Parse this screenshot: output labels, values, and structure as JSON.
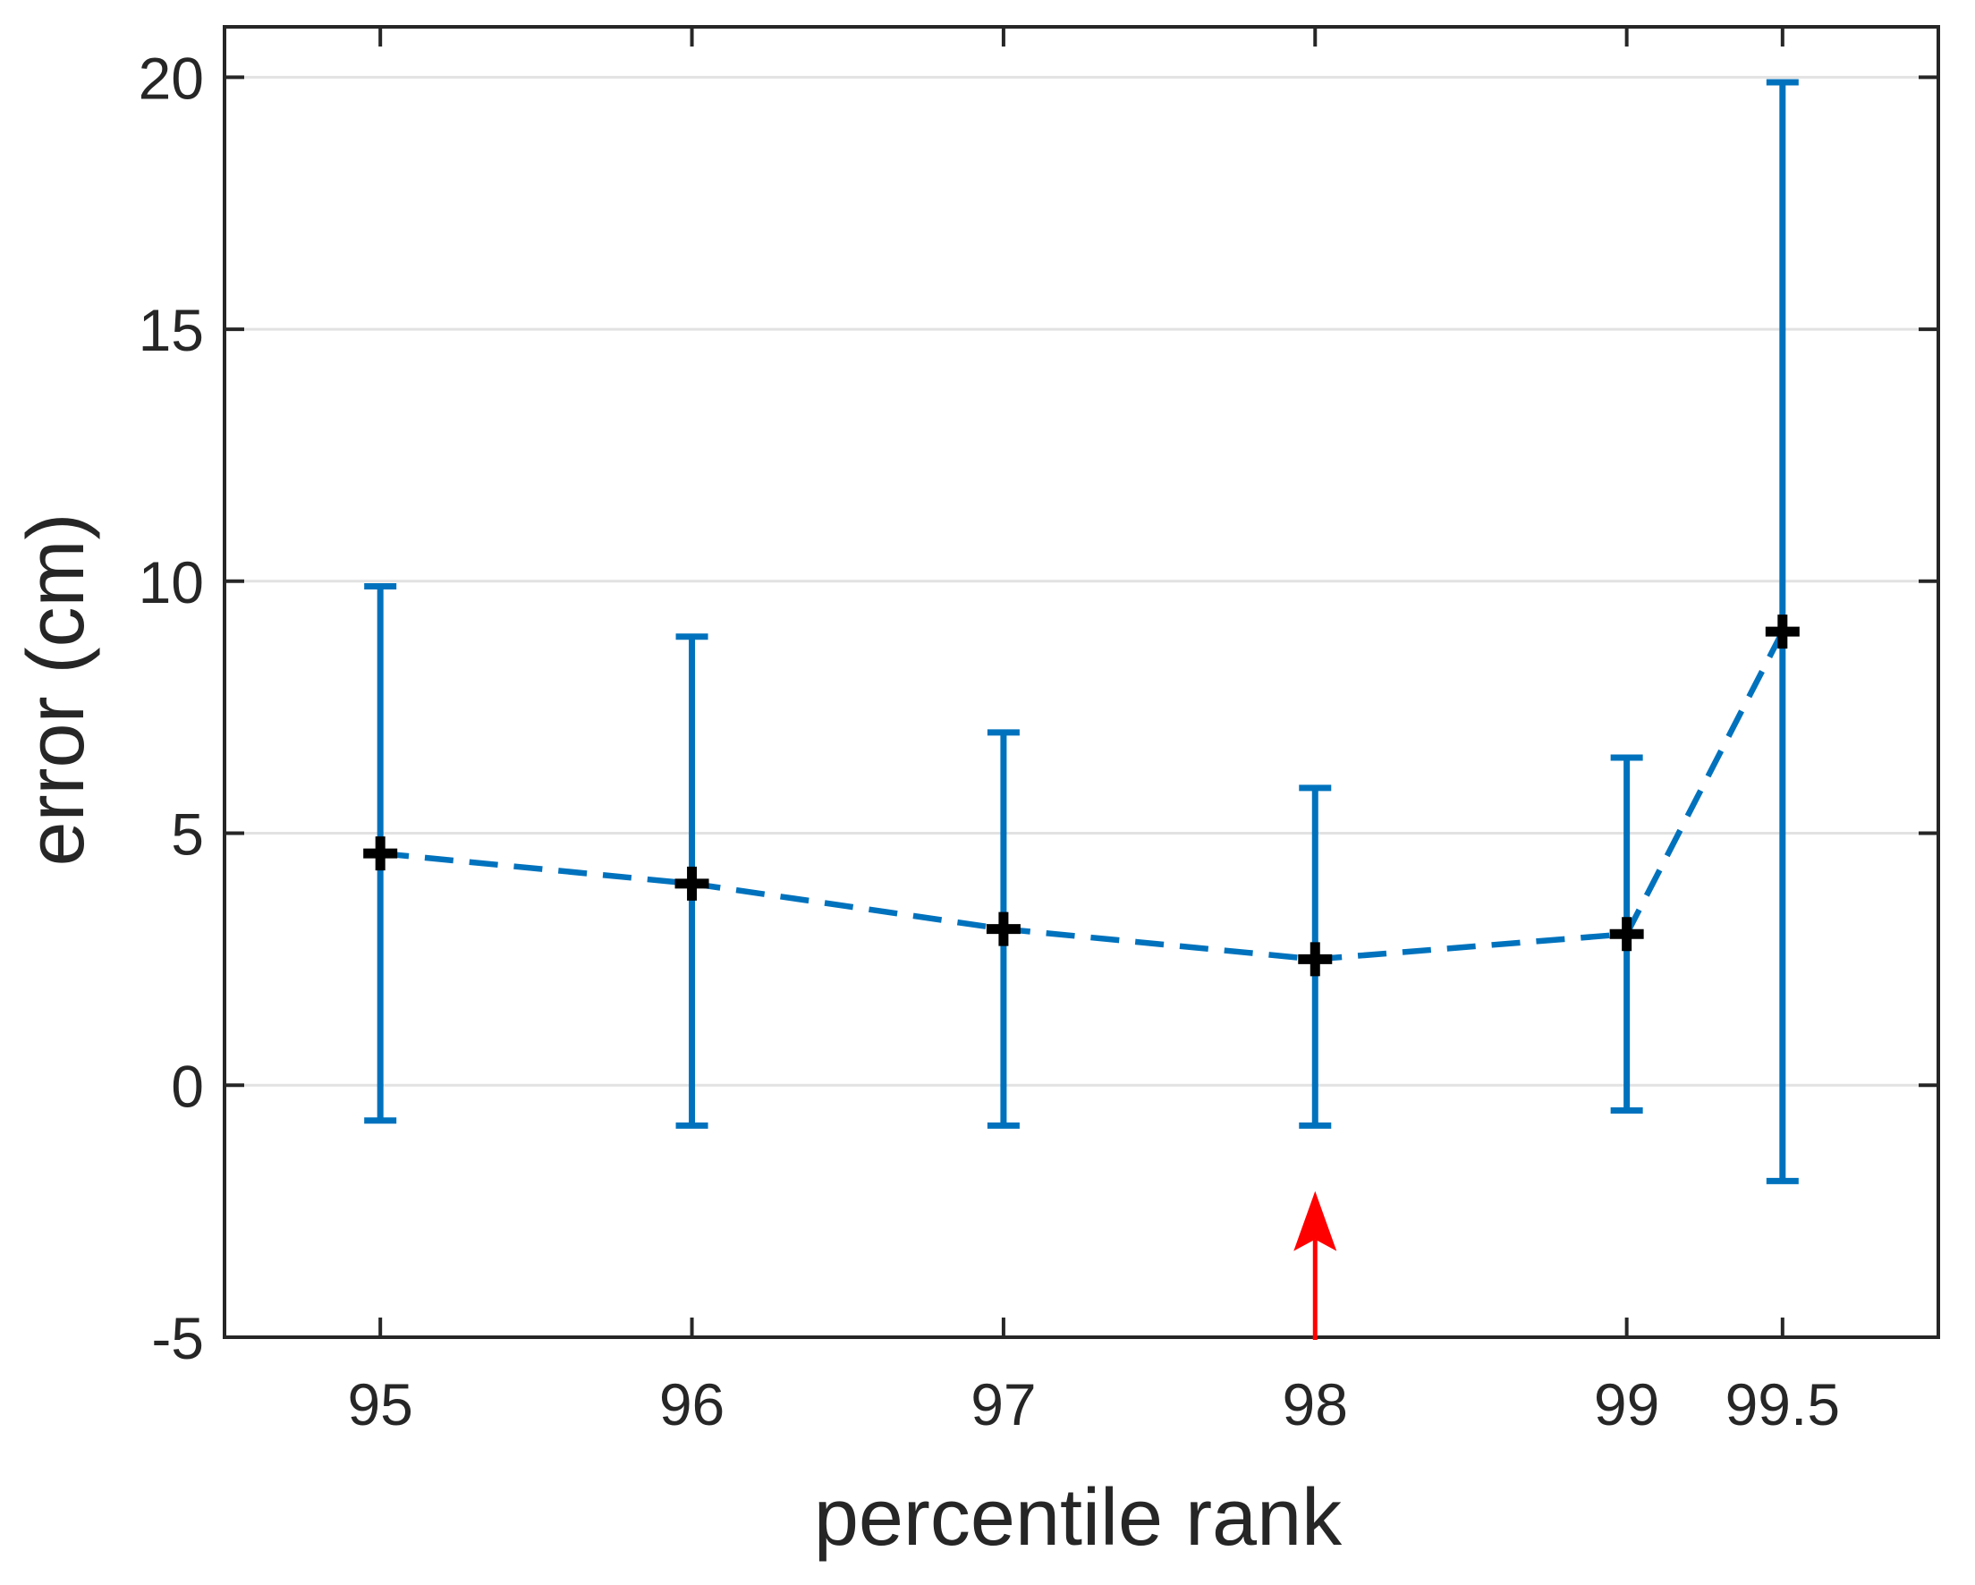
{
  "chart_data": {
    "type": "line",
    "subtype": "errorbar",
    "title": "",
    "xlabel": "percentile rank",
    "ylabel": "error (cm)",
    "x": [
      95,
      96,
      97,
      98,
      99,
      99.5
    ],
    "series": [
      {
        "name": "",
        "values": [
          4.6,
          4.0,
          3.1,
          2.5,
          3.0,
          9.0
        ],
        "upper": [
          9.9,
          8.9,
          7.0,
          5.9,
          6.5,
          19.9
        ],
        "lower": [
          -0.7,
          -0.8,
          -0.8,
          -0.8,
          -0.5,
          -1.9
        ],
        "color": "#0072BD",
        "line_style": "dashed",
        "marker": "+",
        "marker_color": "#000000"
      }
    ],
    "xlim": [
      94.5,
      100
    ],
    "ylim": [
      -5,
      21
    ],
    "xticks": [
      95,
      96,
      97,
      98,
      99,
      99.5
    ],
    "xtick_labels": [
      "95",
      "96",
      "97",
      "98",
      "99",
      "99.5"
    ],
    "yticks": [
      -5,
      0,
      5,
      10,
      15,
      20
    ],
    "ytick_labels": [
      "-5",
      "0",
      "5",
      "10",
      "15",
      "20"
    ],
    "grid": {
      "x": false,
      "y": true,
      "color": "#e2e2e2"
    },
    "axis_color": "#262626",
    "background": "#ffffff",
    "legend": null,
    "annotations": [
      {
        "type": "arrow",
        "x": 98,
        "y_tail": -5,
        "y_tip": -2.1,
        "color": "#ff0000"
      }
    ]
  }
}
